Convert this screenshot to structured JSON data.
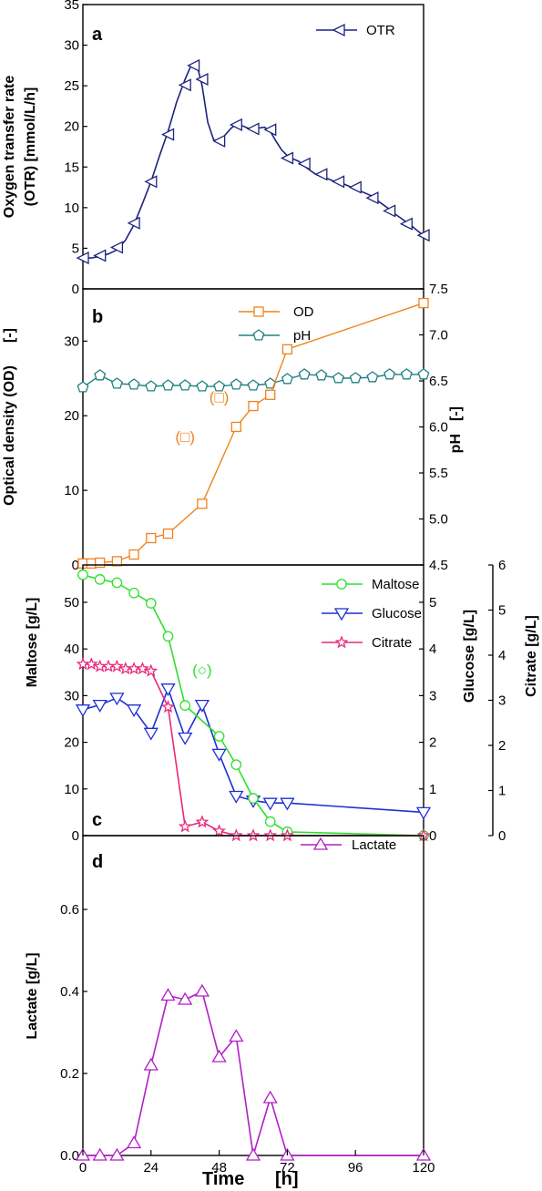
{
  "figure": {
    "xlabel": "Time",
    "xunit": "[h]",
    "xticks": [
      "0",
      "24",
      "48",
      "72",
      "96",
      "120"
    ],
    "xlim": [
      0,
      120
    ]
  },
  "colors": {
    "otr": "#1c237d",
    "od": "#f0821e",
    "ph": "#1f8080",
    "maltose": "#2ee02e",
    "glucose": "#1e2fd6",
    "citrate": "#e8287a",
    "lactate": "#b21fc7"
  },
  "chart_data": [
    {
      "panel": "a",
      "type": "line",
      "ylabel_line1": "Oxygen transfer rate",
      "ylabel_line2": "(OTR)  [mmol/L/h]",
      "ylim": [
        0,
        35
      ],
      "yticks": [
        "0",
        "5",
        "10",
        "15",
        "20",
        "25",
        "30",
        "35"
      ],
      "series": [
        {
          "name": "OTR",
          "marker": "triangle-left",
          "x": [
            0.5,
            3,
            6,
            9,
            12,
            15,
            18,
            21,
            24,
            27,
            30,
            33,
            36,
            38,
            40,
            42,
            44,
            46,
            48,
            50,
            52,
            54,
            56,
            58,
            60,
            62,
            64,
            66,
            68,
            70,
            72,
            74,
            76,
            78,
            80,
            82,
            84,
            86,
            88,
            90,
            92,
            94,
            96,
            98,
            100,
            102,
            104,
            106,
            108,
            110,
            112,
            114,
            116,
            118,
            120
          ],
          "y": [
            3.8,
            3.8,
            4.0,
            4.3,
            4.8,
            6.0,
            7.9,
            10.5,
            13.2,
            16.4,
            19.4,
            23.0,
            25.8,
            27.4,
            27.8,
            25.0,
            20.5,
            18.4,
            18.0,
            18.9,
            19.7,
            20.3,
            20.1,
            19.8,
            19.7,
            19.8,
            19.9,
            19.4,
            18.2,
            17.1,
            16.4,
            16.0,
            15.7,
            15.1,
            14.6,
            14.1,
            13.8,
            13.6,
            13.3,
            13.1,
            12.9,
            12.6,
            12.3,
            12.0,
            11.7,
            11.4,
            10.8,
            10.3,
            9.8,
            9.2,
            8.7,
            8.2,
            7.7,
            7.1,
            6.6
          ],
          "marker_x": [
            0,
            6,
            12,
            18,
            24,
            30,
            36,
            39,
            42,
            48,
            54,
            60,
            66,
            72,
            78,
            84,
            90,
            96,
            102,
            108,
            114,
            120
          ],
          "marker_y": [
            3.8,
            4.1,
            5.1,
            8.1,
            13.2,
            19.0,
            25.1,
            27.5,
            25.8,
            18.2,
            20.2,
            19.7,
            19.6,
            16.1,
            15.4,
            14.1,
            13.2,
            12.5,
            11.2,
            9.6,
            8.0,
            6.6
          ]
        }
      ]
    },
    {
      "panel": "b",
      "type": "line",
      "ylabel_line1": "Optical density (OD)",
      "ylabel_unit": "[-]",
      "ylim": [
        0,
        37
      ],
      "yticks": [
        "0",
        "10",
        "20",
        "30"
      ],
      "y2label": "pH",
      "y2unit": "[-]",
      "y2lim": [
        4.5,
        7.5
      ],
      "y2ticks": [
        "4.5",
        "5.0",
        "5.5",
        "6.0",
        "6.5",
        "7.0",
        "7.5"
      ],
      "series": [
        {
          "name": "OD",
          "axis": "left",
          "marker": "square",
          "x": [
            0,
            3,
            6,
            12,
            18,
            24,
            30,
            42,
            54,
            60,
            66,
            72,
            120
          ],
          "y": [
            0.2,
            0.2,
            0.3,
            0.5,
            1.4,
            3.6,
            4.2,
            8.2,
            18.5,
            21.3,
            22.8,
            28.9,
            35.1
          ]
        },
        {
          "name": "pH",
          "axis": "right",
          "marker": "pentagon",
          "x": [
            0,
            6,
            12,
            18,
            24,
            30,
            36,
            42,
            48,
            54,
            60,
            66,
            72,
            78,
            84,
            90,
            96,
            102,
            108,
            114,
            120
          ],
          "y": [
            6.43,
            6.56,
            6.47,
            6.46,
            6.44,
            6.45,
            6.45,
            6.44,
            6.44,
            6.46,
            6.45,
            6.47,
            6.52,
            6.57,
            6.56,
            6.53,
            6.53,
            6.54,
            6.57,
            6.57,
            6.57
          ]
        }
      ],
      "annotations": [
        {
          "text": "(□)",
          "x": 36,
          "y": 17.2,
          "series": "OD"
        },
        {
          "text": "(□)",
          "x": 48,
          "y": 22.5,
          "series": "OD"
        }
      ]
    },
    {
      "panel": "c",
      "type": "line",
      "ylabel_line1": "Maltose   [g/L]",
      "ylim": [
        0,
        58
      ],
      "yticks": [
        "0",
        "10",
        "20",
        "30",
        "40",
        "50"
      ],
      "y2label": "Glucose   [g/L]",
      "y2lim": [
        0,
        5.8
      ],
      "y2ticks": [
        "0",
        "1",
        "2",
        "3",
        "4",
        "5"
      ],
      "y3label": "Citrate   [g/L]",
      "y3lim": [
        0,
        6
      ],
      "y3ticks": [
        "0",
        "1",
        "2",
        "3",
        "4",
        "5",
        "6"
      ],
      "series": [
        {
          "name": "Maltose",
          "axis": "left",
          "marker": "circle",
          "x": [
            0,
            6,
            12,
            18,
            24,
            30,
            36,
            48,
            54,
            60,
            66,
            72,
            120
          ],
          "y": [
            55.9,
            54.9,
            54.2,
            52.0,
            49.8,
            42.7,
            27.9,
            21.3,
            15.2,
            8.0,
            3.0,
            0.8,
            0.0
          ]
        },
        {
          "name": "Glucose",
          "axis": "y2",
          "marker": "triangle-down",
          "x": [
            0,
            6,
            12,
            18,
            24,
            30,
            36,
            42,
            48,
            54,
            60,
            66,
            72,
            120
          ],
          "y": [
            2.7,
            2.8,
            2.95,
            2.7,
            2.2,
            3.15,
            2.1,
            2.8,
            1.75,
            0.85,
            0.75,
            0.7,
            0.7,
            0.5
          ]
        },
        {
          "name": "Citrate",
          "axis": "y3",
          "marker": "star",
          "x": [
            0,
            3,
            6,
            9,
            12,
            15,
            18,
            21,
            24,
            30,
            36,
            42,
            48,
            54,
            60,
            66,
            72,
            120
          ],
          "y": [
            3.8,
            3.8,
            3.75,
            3.75,
            3.75,
            3.7,
            3.7,
            3.7,
            3.65,
            2.85,
            0.2,
            0.3,
            0.1,
            0.0,
            0.0,
            0.0,
            0.0,
            0.0
          ]
        }
      ],
      "annotations": [
        {
          "text": "(○)",
          "x": 42,
          "y": 35.5,
          "series": "Maltose"
        }
      ]
    },
    {
      "panel": "d",
      "type": "line",
      "ylabel_line1": "Lactate   [g/L]",
      "ylim": [
        0,
        0.78
      ],
      "yticks": [
        "0.0",
        "0.2",
        "0.4",
        "0.6"
      ],
      "series": [
        {
          "name": "Lactate",
          "axis": "left",
          "marker": "triangle-up",
          "x": [
            0,
            6,
            12,
            18,
            24,
            30,
            36,
            42,
            48,
            54,
            60,
            66,
            72,
            120
          ],
          "y": [
            0.0,
            0.0,
            0.0,
            0.03,
            0.22,
            0.39,
            0.38,
            0.4,
            0.24,
            0.29,
            0.0,
            0.14,
            0.0,
            0.0
          ]
        }
      ]
    }
  ]
}
